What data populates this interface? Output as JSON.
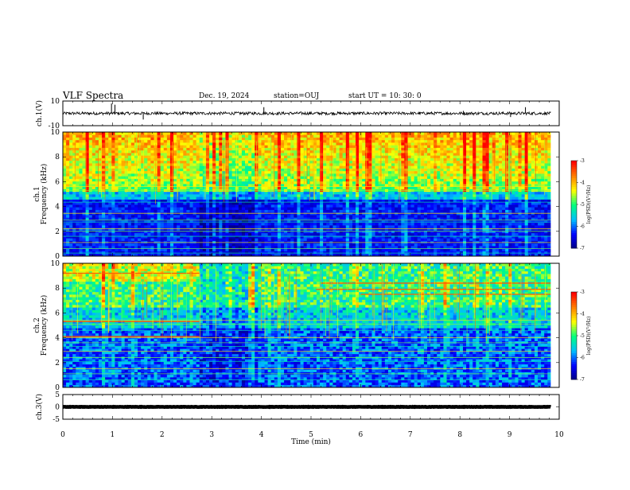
{
  "header": {
    "title": "VLF Spectra",
    "date": "Dec. 19, 2024",
    "station": "station=OUJ",
    "start_time": "start  UT  =   10: 30: 0"
  },
  "colors": {
    "background": "#ffffff",
    "ink": "#000000",
    "colormap": [
      "#000080",
      "#0000ff",
      "#00bfff",
      "#00ff80",
      "#ffff00",
      "#ff8000",
      "#ff0000",
      "#ffffff"
    ]
  },
  "chart_data": [
    {
      "panel": "ch1-waveform",
      "type": "line",
      "ylabel": "ch.1(V)",
      "ylim": [
        -10,
        10
      ],
      "yticks": [
        10,
        -10
      ],
      "xlim": [
        0,
        10
      ],
      "baseline": 0,
      "spikes": [
        {
          "x": 0.98,
          "y": 8.0
        },
        {
          "x": 1.05,
          "y": 7.0
        },
        {
          "x": 1.62,
          "y": -5.0
        },
        {
          "x": 4.05,
          "y": 5.0
        },
        {
          "x": 8.07,
          "y": 2.0
        },
        {
          "x": 9.02,
          "y": -3.0
        },
        {
          "x": 9.32,
          "y": 5.0
        }
      ]
    },
    {
      "panel": "ch1-spectrogram",
      "type": "heatmap",
      "ylabel": "ch.1\nFrequency (kHz)",
      "ylim": [
        0,
        10
      ],
      "yticks": [
        0,
        2,
        4,
        6,
        8,
        10
      ],
      "xlim": [
        0,
        10
      ],
      "data_end_min": 9.83,
      "colorbar": {
        "label": "log(PSD)(V²/Hz)",
        "range": [
          -7,
          -3
        ],
        "ticks": [
          -3,
          -4,
          -5,
          -6,
          -7
        ]
      },
      "broadband_lines_khz": [
        0.25,
        0.6,
        1.1,
        1.6,
        2.0,
        2.2,
        2.75,
        2.9,
        3.45,
        4.35,
        5.3,
        5.6
      ],
      "enhanced_band_khz": [
        5.0,
        10.0
      ]
    },
    {
      "panel": "ch2-spectrogram",
      "type": "heatmap",
      "ylabel": "ch.2\nFrequency (kHz)",
      "ylim": [
        0,
        10
      ],
      "yticks": [
        0,
        2,
        4,
        6,
        8,
        10
      ],
      "xlim": [
        0,
        10
      ],
      "data_end_min": 9.83,
      "colorbar": {
        "label": "log(PSD)(V²/Hz)",
        "range": [
          -7,
          -3
        ],
        "ticks": [
          -3,
          -4,
          -5,
          -6,
          -7
        ]
      },
      "broadband_lines_khz": [
        0.6,
        1.1,
        1.5,
        2.1,
        2.4,
        2.9,
        3.3,
        3.6,
        4.0,
        4.6,
        5.1,
        5.4
      ],
      "narrowband_tones": [
        {
          "t0": 0.0,
          "t1": 2.75,
          "f": 4.1
        },
        {
          "t0": 0.0,
          "t1": 2.75,
          "f": 5.3
        },
        {
          "t0": 0.0,
          "t1": 2.75,
          "f": 9.2
        },
        {
          "t0": 5.1,
          "t1": 9.83,
          "f": 7.9
        },
        {
          "t0": 5.2,
          "t1": 9.83,
          "f": 8.4
        },
        {
          "t0": 6.0,
          "t1": 9.83,
          "f": 7.5
        }
      ]
    },
    {
      "panel": "ch3-waveform",
      "type": "line",
      "ylabel": "ch.3(V)",
      "ylim": [
        -5,
        5
      ],
      "yticks": [
        5,
        0,
        -5
      ],
      "xlim": [
        0,
        10
      ],
      "baseline": 0,
      "xlabel": "Time  (min)",
      "xticks": [
        0,
        1,
        2,
        3,
        4,
        5,
        6,
        7,
        8,
        9,
        10
      ]
    }
  ]
}
